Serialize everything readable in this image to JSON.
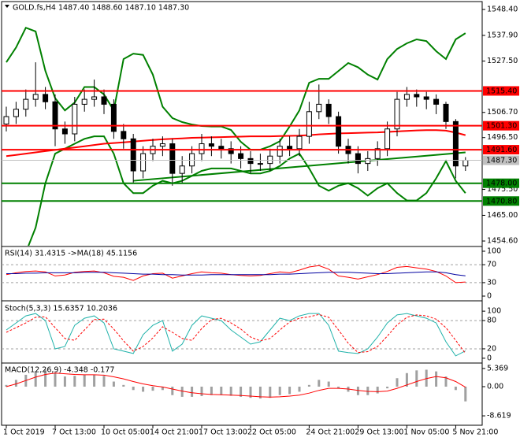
{
  "chart_data": [
    {
      "type": "candlestick",
      "title": "GOLD.fs,H4 1487.40 1488.60 1487.10 1487.30",
      "categories": [
        "1 Oct 2019",
        null,
        null,
        null,
        null,
        "7 Oct 13:00",
        null,
        null,
        null,
        null,
        "10 Oct 05:00",
        null,
        null,
        null,
        null,
        "14 Oct 21:00",
        null,
        null,
        null,
        null,
        "17 Oct 13:00",
        null,
        null,
        null,
        null,
        "22 Oct 05:00",
        null,
        null,
        null,
        null,
        null,
        "24 Oct 21:00",
        null,
        null,
        null,
        null,
        "29 Oct 13:00",
        null,
        null,
        null,
        null,
        "1 Nov 05:00",
        null,
        null,
        null,
        null,
        "5 Nov 21:00",
        null
      ],
      "open": [
        1502,
        1505,
        1508,
        1512,
        1514,
        1511,
        1500,
        1498,
        1510,
        1512,
        1513,
        1510,
        1499,
        1496,
        1483,
        1490,
        1493,
        1494,
        1482,
        1485,
        1490,
        1494,
        1493,
        1492,
        1490,
        1488,
        1486,
        1486,
        1489,
        1493,
        1492,
        1497,
        1507,
        1510,
        1505,
        1493,
        1490,
        1486,
        1488,
        1492,
        1500,
        1512,
        1514,
        1513,
        1512,
        1510,
        1503,
        1485
      ],
      "high": [
        1509,
        1511,
        1516,
        1527,
        1517,
        1514,
        1503,
        1513,
        1516,
        1520,
        1516,
        1512,
        1502,
        1498,
        1493,
        1496,
        1497,
        1496,
        1489,
        1493,
        1498,
        1497,
        1496,
        1495,
        1493,
        1491,
        1490,
        1492,
        1496,
        1497,
        1500,
        1511,
        1518,
        1512,
        1507,
        1496,
        1493,
        1491,
        1495,
        1503,
        1515,
        1517,
        1516,
        1515,
        1514,
        1511,
        1504,
        1488.6
      ],
      "low": [
        1499,
        1502,
        1505,
        1509,
        1508,
        1493,
        1494,
        1495,
        1507,
        1509,
        1506,
        1496,
        1492,
        1478,
        1480,
        1487,
        1489,
        1477,
        1478,
        1482,
        1487,
        1489,
        1488,
        1486,
        1484,
        1482,
        1483,
        1483,
        1486,
        1489,
        1489,
        1494,
        1504,
        1502,
        1490,
        1486,
        1482,
        1483,
        1485,
        1489,
        1497,
        1509,
        1509,
        1508,
        1506,
        1500,
        1480,
        1483
      ],
      "close": [
        1505,
        1508,
        1512,
        1514,
        1511,
        1500,
        1498,
        1510,
        1512,
        1513,
        1510,
        1499,
        1496,
        1483,
        1490,
        1493,
        1494,
        1482,
        1485,
        1490,
        1494,
        1493,
        1492,
        1490,
        1488,
        1486,
        1486,
        1489,
        1493,
        1492,
        1497,
        1507,
        1510,
        1505,
        1493,
        1490,
        1486,
        1488,
        1492,
        1500,
        1512,
        1514,
        1513,
        1512,
        1510,
        1503,
        1485,
        1487.3
      ],
      "candle_colors": {
        "up": "#ffffff",
        "down": "#000000",
        "outline": "#000000"
      },
      "bands": {
        "color": "#008000",
        "upper": [
          1527,
          1533,
          1541,
          1539.5,
          1523.5,
          1512.5,
          1507.5,
          1510.7,
          1517,
          1517,
          1514,
          1507.5,
          1528.3,
          1530.5,
          1530,
          1522,
          1509,
          1504.4,
          1502.8,
          1501.8,
          1501.2,
          1501,
          1501,
          1499.6,
          1494.8,
          1491.6,
          1491.6,
          1493,
          1495,
          1501,
          1507.5,
          1518.7,
          1520.3,
          1520.3,
          1523.5,
          1526.7,
          1525,
          1522,
          1520,
          1528.3,
          1532.4,
          1534.7,
          1536.3,
          1535.6,
          1531.5,
          1528.3,
          1536.3,
          1538.8
        ],
        "lower": [
          1440,
          1445,
          1450,
          1460,
          1478,
          1490,
          1492,
          1494,
          1496,
          1497,
          1497,
          1490,
          1478,
          1474,
          1474,
          1477,
          1479,
          1478,
          1479,
          1481,
          1483,
          1484,
          1484,
          1484,
          1483,
          1482,
          1482,
          1483,
          1485,
          1488,
          1490,
          1484,
          1477,
          1475,
          1477,
          1478,
          1476,
          1473,
          1476,
          1478,
          1474,
          1471,
          1471,
          1474,
          1480,
          1487,
          1479,
          1474
        ]
      },
      "ma": {
        "color": "#ff0000",
        "values": [
          1489,
          1489.5,
          1490,
          1490.5,
          1491,
          1491.5,
          1492,
          1492.5,
          1493,
          1493.5,
          1494,
          1494.3,
          1494.6,
          1494.9,
          1495.2,
          1495.5,
          1495.8,
          1496,
          1496.2,
          1496.4,
          1496.5,
          1496.6,
          1496.7,
          1496.8,
          1496.9,
          1497,
          1497,
          1497,
          1497.1,
          1497.2,
          1497.3,
          1497.5,
          1497.8,
          1498,
          1498.2,
          1498.3,
          1498.4,
          1498.5,
          1498.6,
          1498.8,
          1499,
          1499.2,
          1499.4,
          1499.5,
          1499.5,
          1499.3,
          1498.5,
          1497.5
        ]
      },
      "trendline": {
        "color": "#008000",
        "x": [
          13,
          47
        ],
        "values": [
          1479,
          1490.5
        ]
      },
      "levels": {
        "values": [
          1515.4,
          1501.3,
          1491.6,
          1487.3,
          1478,
          1470.8
        ],
        "value_labels": [
          "1515.40",
          "1501.30",
          "1491.60",
          "1487.30",
          "1478.00",
          "1470.80"
        ],
        "colors": [
          "#ff0000",
          "#ff0000",
          "#ff0000",
          "#c0c0c0",
          "#008000",
          "#008000"
        ]
      },
      "ylim": [
        1452.7,
        1551.6
      ],
      "yticks": [
        {
          "value": 1548.4,
          "label": "1548.40"
        },
        {
          "value": 1537.9,
          "label": "1537.90"
        },
        {
          "value": 1527.5,
          "label": "1527.50"
        },
        {
          "value": 1506.7,
          "label": "1506.70"
        },
        {
          "value": 1496.5,
          "label": "1496.50"
        },
        {
          "value": 1475.5,
          "label": "1475.50"
        },
        {
          "value": 1465,
          "label": "1465.00"
        },
        {
          "value": 1454.6,
          "label": "1454.60"
        }
      ]
    },
    {
      "type": "indicator",
      "title": "RSI(14) 31.4315 ->MA(18) 45.1156",
      "series": [
        {
          "color": "#ff0000",
          "style": "solid",
          "values": [
            48,
            52,
            55,
            56,
            54,
            45,
            47,
            53,
            55,
            56,
            52,
            44,
            42,
            35,
            45,
            50,
            51,
            40,
            45,
            50,
            54,
            52,
            51,
            48,
            46,
            45,
            46,
            50,
            54,
            52,
            58,
            65,
            68,
            60,
            45,
            42,
            38,
            43,
            48,
            55,
            64,
            66,
            63,
            60,
            55,
            45,
            30,
            31.4315
          ]
        },
        {
          "color": "#0000a0",
          "style": "solid",
          "values": [
            50,
            50,
            51,
            51,
            52,
            52,
            52,
            52,
            53,
            53,
            53,
            52,
            51,
            50,
            49,
            49,
            48,
            48,
            47,
            47,
            47,
            48,
            48,
            48,
            48,
            48,
            48,
            48,
            49,
            49,
            50,
            51,
            52,
            53,
            53,
            53,
            52,
            51,
            50,
            50,
            51,
            52,
            53,
            54,
            54,
            52,
            48,
            45.1156
          ]
        }
      ],
      "ylim": [
        -7,
        108.8
      ],
      "yticks": [
        0,
        30,
        70,
        100
      ],
      "grid": true
    },
    {
      "type": "indicator",
      "title": "Stoch(5,3,3) 15.6357 10.2036",
      "series": [
        {
          "color": "#20b2aa",
          "style": "solid",
          "values": [
            60,
            75,
            90,
            95,
            80,
            20,
            25,
            70,
            85,
            90,
            75,
            20,
            15,
            10,
            50,
            70,
            80,
            15,
            30,
            70,
            90,
            85,
            80,
            60,
            45,
            30,
            35,
            60,
            85,
            80,
            90,
            95,
            95,
            70,
            15,
            12,
            10,
            20,
            45,
            75,
            92,
            95,
            90,
            85,
            75,
            35,
            5,
            15.6357
          ]
        },
        {
          "color": "#ff0000",
          "style": "dashed",
          "values": [
            55,
            65,
            75,
            87,
            88,
            65,
            42,
            38,
            60,
            82,
            83,
            62,
            37,
            15,
            25,
            43,
            67,
            55,
            42,
            38,
            63,
            82,
            85,
            75,
            62,
            45,
            37,
            42,
            60,
            77,
            85,
            88,
            93,
            87,
            60,
            32,
            12,
            14,
            25,
            47,
            71,
            87,
            92,
            90,
            83,
            65,
            38,
            10.2036
          ]
        }
      ],
      "ylim": [
        -8.5,
        118.6
      ],
      "yticks": [
        0,
        20,
        80,
        100
      ],
      "grid": true
    },
    {
      "type": "indicator",
      "title": "MACD(12,26,9) -4.348 -0.177",
      "series": [
        {
          "color": "#a0a0a0",
          "style": "bar",
          "values": [
            0.5,
            2,
            3.5,
            4.5,
            5,
            4.2,
            3,
            3.2,
            3.5,
            3.6,
            3.2,
            1.5,
            0.5,
            -1,
            -1.5,
            -1.2,
            -1,
            -2.5,
            -3,
            -3,
            -2.8,
            -2.5,
            -2.5,
            -2.7,
            -3,
            -3.3,
            -3.5,
            -3.3,
            -2.5,
            -2.2,
            -1.5,
            0.5,
            2,
            1.5,
            -0.5,
            -1.5,
            -2.5,
            -2.5,
            -2,
            -0.5,
            2.5,
            4,
            4.8,
            5,
            4.5,
            3,
            -1,
            -4.348
          ]
        },
        {
          "color": "#ff0000",
          "style": "solid",
          "values": [
            0,
            0.8,
            1.8,
            2.8,
            3.6,
            4,
            3.8,
            3.6,
            3.5,
            3.5,
            3.4,
            2.9,
            2.3,
            1.5,
            0.8,
            0.3,
            -0.1,
            -0.7,
            -1.3,
            -1.8,
            -2.1,
            -2.3,
            -2.4,
            -2.5,
            -2.6,
            -2.8,
            -3,
            -3.1,
            -3,
            -2.8,
            -2.5,
            -1.9,
            -1.1,
            -0.5,
            -0.5,
            -0.7,
            -1.1,
            -1.4,
            -1.5,
            -1.3,
            -0.5,
            0.5,
            1.5,
            2.4,
            3,
            2.6,
            1.5,
            -0.177
          ]
        }
      ],
      "ylim": [
        -10.7,
        6.74
      ],
      "yticks": [
        5.369,
        {
          "value": 0,
          "label": "0.00"
        },
        -8.619
      ],
      "grid": false
    }
  ]
}
